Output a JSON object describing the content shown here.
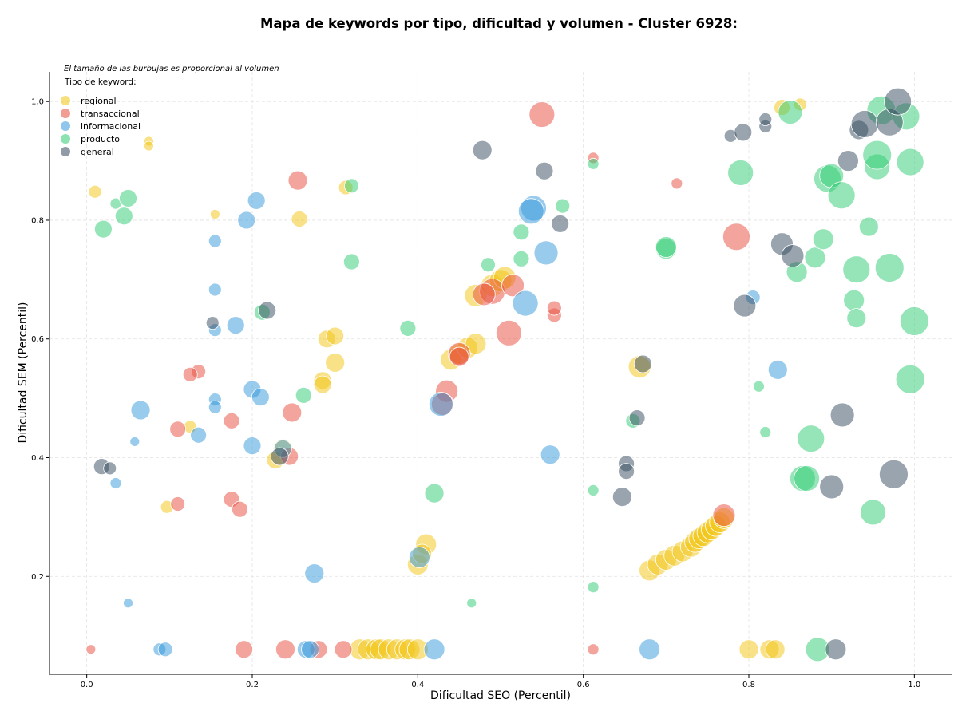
{
  "chart_data": {
    "type": "scatter",
    "title": "Mapa de keywords por tipo, dificultad y volumen - Cluster 6928:",
    "note": "El tamaño de las burbujas es proporcional al volumen",
    "xlabel": "Dificultad SEO (Percentil)",
    "ylabel": "Dificultad SEM (Percentil)",
    "xlim": [
      -0.045,
      1.045
    ],
    "ylim": [
      0.035,
      1.05
    ],
    "xticks": [
      0.0,
      0.2,
      0.4,
      0.6,
      0.8,
      1.0
    ],
    "yticks": [
      0.2,
      0.4,
      0.6,
      0.8,
      1.0
    ],
    "xtick_labels": [
      "0.0",
      "0.2",
      "0.4",
      "0.6",
      "0.8",
      "1.0"
    ],
    "ytick_labels": [
      "0.2",
      "0.4",
      "0.6",
      "0.8",
      "1.0"
    ],
    "grid": true,
    "legend": {
      "title": "Tipo de keyword:",
      "position": "top-left"
    },
    "series": [
      {
        "name": "regional",
        "color": "#f1c40f",
        "points": [
          [
            0.01,
            0.848,
            8
          ],
          [
            0.075,
            0.933,
            6
          ],
          [
            0.075,
            0.925,
            6
          ],
          [
            0.155,
            0.81,
            6
          ],
          [
            0.257,
            0.802,
            10
          ],
          [
            0.313,
            0.855,
            9
          ],
          [
            0.29,
            0.6,
            11
          ],
          [
            0.3,
            0.605,
            11
          ],
          [
            0.3,
            0.56,
            12
          ],
          [
            0.285,
            0.53,
            11
          ],
          [
            0.285,
            0.523,
            11
          ],
          [
            0.237,
            0.415,
            12
          ],
          [
            0.228,
            0.396,
            11
          ],
          [
            0.125,
            0.452,
            8
          ],
          [
            0.097,
            0.317,
            8
          ],
          [
            0.47,
            0.673,
            14
          ],
          [
            0.49,
            0.69,
            14
          ],
          [
            0.5,
            0.698,
            14
          ],
          [
            0.505,
            0.703,
            14
          ],
          [
            0.44,
            0.565,
            13
          ],
          [
            0.45,
            0.575,
            13
          ],
          [
            0.46,
            0.585,
            13
          ],
          [
            0.47,
            0.592,
            13
          ],
          [
            0.41,
            0.254,
            13
          ],
          [
            0.4,
            0.22,
            13
          ],
          [
            0.405,
            0.238,
            12
          ],
          [
            0.668,
            0.553,
            14
          ],
          [
            0.84,
            0.99,
            10
          ],
          [
            0.862,
            0.995,
            8
          ],
          [
            0.68,
            0.21,
            13
          ],
          [
            0.69,
            0.22,
            13
          ],
          [
            0.7,
            0.228,
            13
          ],
          [
            0.71,
            0.235,
            13
          ],
          [
            0.72,
            0.242,
            13
          ],
          [
            0.73,
            0.25,
            13
          ],
          [
            0.735,
            0.258,
            13
          ],
          [
            0.74,
            0.264,
            13
          ],
          [
            0.745,
            0.268,
            13
          ],
          [
            0.75,
            0.274,
            13
          ],
          [
            0.755,
            0.279,
            13
          ],
          [
            0.76,
            0.285,
            13
          ],
          [
            0.765,
            0.291,
            13
          ],
          [
            0.77,
            0.298,
            13
          ],
          [
            0.8,
            0.077,
            12
          ],
          [
            0.825,
            0.077,
            12
          ],
          [
            0.832,
            0.077,
            12
          ],
          [
            0.33,
            0.077,
            13
          ],
          [
            0.34,
            0.077,
            13
          ],
          [
            0.35,
            0.077,
            13
          ],
          [
            0.355,
            0.077,
            13
          ],
          [
            0.365,
            0.077,
            13
          ],
          [
            0.375,
            0.077,
            13
          ],
          [
            0.385,
            0.077,
            13
          ],
          [
            0.39,
            0.077,
            13
          ],
          [
            0.4,
            0.077,
            13
          ]
        ]
      },
      {
        "name": "transaccional",
        "color": "#e74c3c",
        "points": [
          [
            0.005,
            0.077,
            6
          ],
          [
            0.19,
            0.077,
            11
          ],
          [
            0.24,
            0.077,
            12
          ],
          [
            0.28,
            0.077,
            11
          ],
          [
            0.31,
            0.077,
            11
          ],
          [
            0.255,
            0.867,
            12
          ],
          [
            0.55,
            0.978,
            16
          ],
          [
            0.612,
            0.905,
            7
          ],
          [
            0.713,
            0.862,
            7
          ],
          [
            0.785,
            0.772,
            17
          ],
          [
            0.49,
            0.68,
            16
          ],
          [
            0.48,
            0.675,
            14
          ],
          [
            0.51,
            0.61,
            16
          ],
          [
            0.515,
            0.69,
            14
          ],
          [
            0.565,
            0.64,
            9
          ],
          [
            0.565,
            0.652,
            9
          ],
          [
            0.45,
            0.575,
            14
          ],
          [
            0.45,
            0.57,
            12
          ],
          [
            0.435,
            0.512,
            14
          ],
          [
            0.43,
            0.49,
            14
          ],
          [
            0.135,
            0.545,
            9
          ],
          [
            0.125,
            0.54,
            9
          ],
          [
            0.175,
            0.462,
            10
          ],
          [
            0.11,
            0.448,
            10
          ],
          [
            0.248,
            0.476,
            12
          ],
          [
            0.245,
            0.402,
            11
          ],
          [
            0.175,
            0.33,
            10
          ],
          [
            0.185,
            0.313,
            10
          ],
          [
            0.11,
            0.322,
            9
          ],
          [
            0.77,
            0.303,
            14
          ],
          [
            0.612,
            0.077,
            7
          ]
        ]
      },
      {
        "name": "informacional",
        "color": "#3498db",
        "points": [
          [
            0.205,
            0.833,
            11
          ],
          [
            0.193,
            0.8,
            11
          ],
          [
            0.155,
            0.765,
            8
          ],
          [
            0.155,
            0.683,
            8
          ],
          [
            0.18,
            0.623,
            11
          ],
          [
            0.155,
            0.615,
            8
          ],
          [
            0.155,
            0.498,
            8
          ],
          [
            0.155,
            0.485,
            8
          ],
          [
            0.065,
            0.48,
            12
          ],
          [
            0.2,
            0.515,
            11
          ],
          [
            0.21,
            0.502,
            11
          ],
          [
            0.135,
            0.438,
            10
          ],
          [
            0.2,
            0.42,
            11
          ],
          [
            0.237,
            0.415,
            11
          ],
          [
            0.058,
            0.427,
            6
          ],
          [
            0.035,
            0.357,
            7
          ],
          [
            0.05,
            0.155,
            6
          ],
          [
            0.275,
            0.205,
            12
          ],
          [
            0.088,
            0.077,
            8
          ],
          [
            0.095,
            0.077,
            9
          ],
          [
            0.265,
            0.077,
            11
          ],
          [
            0.27,
            0.077,
            11
          ],
          [
            0.42,
            0.077,
            13
          ],
          [
            0.402,
            0.232,
            13
          ],
          [
            0.428,
            0.49,
            15
          ],
          [
            0.555,
            0.745,
            15
          ],
          [
            0.53,
            0.66,
            16
          ],
          [
            0.54,
            0.82,
            16
          ],
          [
            0.537,
            0.815,
            16
          ],
          [
            0.56,
            0.405,
            12
          ],
          [
            0.68,
            0.077,
            13
          ],
          [
            0.805,
            0.67,
            9
          ],
          [
            0.835,
            0.548,
            12
          ]
        ]
      },
      {
        "name": "producto",
        "color": "#2ecc71",
        "points": [
          [
            0.02,
            0.785,
            11
          ],
          [
            0.035,
            0.828,
            7
          ],
          [
            0.045,
            0.807,
            11
          ],
          [
            0.05,
            0.837,
            11
          ],
          [
            0.32,
            0.858,
            9
          ],
          [
            0.32,
            0.73,
            10
          ],
          [
            0.212,
            0.645,
            10
          ],
          [
            0.262,
            0.505,
            10
          ],
          [
            0.388,
            0.618,
            10
          ],
          [
            0.42,
            0.34,
            12
          ],
          [
            0.465,
            0.155,
            6
          ],
          [
            0.485,
            0.725,
            9
          ],
          [
            0.525,
            0.78,
            10
          ],
          [
            0.525,
            0.735,
            10
          ],
          [
            0.575,
            0.824,
            9
          ],
          [
            0.612,
            0.895,
            7
          ],
          [
            0.612,
            0.345,
            7
          ],
          [
            0.612,
            0.182,
            7
          ],
          [
            0.66,
            0.462,
            9
          ],
          [
            0.7,
            0.752,
            13
          ],
          [
            0.7,
            0.755,
            13
          ],
          [
            0.79,
            0.88,
            16
          ],
          [
            0.812,
            0.52,
            7
          ],
          [
            0.82,
            0.443,
            7
          ],
          [
            0.85,
            0.982,
            15
          ],
          [
            0.858,
            0.713,
            13
          ],
          [
            0.875,
            0.432,
            17
          ],
          [
            0.865,
            0.365,
            16
          ],
          [
            0.87,
            0.365,
            16
          ],
          [
            0.88,
            0.737,
            13
          ],
          [
            0.89,
            0.768,
            13
          ],
          [
            0.895,
            0.87,
            17
          ],
          [
            0.9,
            0.875,
            15
          ],
          [
            0.912,
            0.842,
            17
          ],
          [
            0.927,
            0.665,
            13
          ],
          [
            0.93,
            0.635,
            12
          ],
          [
            0.93,
            0.717,
            17
          ],
          [
            0.945,
            0.789,
            12
          ],
          [
            0.95,
            0.308,
            16
          ],
          [
            0.955,
            0.89,
            16
          ],
          [
            0.955,
            0.91,
            18
          ],
          [
            0.96,
            0.985,
            18
          ],
          [
            0.97,
            0.72,
            18
          ],
          [
            0.99,
            0.975,
            17
          ],
          [
            0.995,
            0.898,
            17
          ],
          [
            1.0,
            0.63,
            18
          ],
          [
            0.995,
            0.532,
            18
          ],
          [
            0.883,
            0.077,
            15
          ]
        ]
      },
      {
        "name": "general",
        "color": "#34495e",
        "points": [
          [
            0.018,
            0.385,
            10
          ],
          [
            0.028,
            0.382,
            8
          ],
          [
            0.152,
            0.627,
            8
          ],
          [
            0.218,
            0.648,
            11
          ],
          [
            0.233,
            0.402,
            11
          ],
          [
            0.478,
            0.918,
            12
          ],
          [
            0.553,
            0.883,
            11
          ],
          [
            0.572,
            0.794,
            11
          ],
          [
            0.665,
            0.467,
            10
          ],
          [
            0.672,
            0.558,
            11
          ],
          [
            0.652,
            0.39,
            10
          ],
          [
            0.652,
            0.377,
            10
          ],
          [
            0.647,
            0.334,
            12
          ],
          [
            0.778,
            0.942,
            8
          ],
          [
            0.793,
            0.948,
            11
          ],
          [
            0.82,
            0.958,
            8
          ],
          [
            0.82,
            0.97,
            8
          ],
          [
            0.795,
            0.656,
            14
          ],
          [
            0.84,
            0.76,
            14
          ],
          [
            0.853,
            0.74,
            14
          ],
          [
            0.913,
            0.472,
            15
          ],
          [
            0.92,
            0.9,
            13
          ],
          [
            0.9,
            0.351,
            15
          ],
          [
            0.933,
            0.952,
            12
          ],
          [
            0.94,
            0.962,
            17
          ],
          [
            0.97,
            0.965,
            17
          ],
          [
            0.975,
            0.372,
            18
          ],
          [
            0.98,
            1.0,
            17
          ],
          [
            0.905,
            0.077,
            13
          ]
        ]
      }
    ]
  }
}
